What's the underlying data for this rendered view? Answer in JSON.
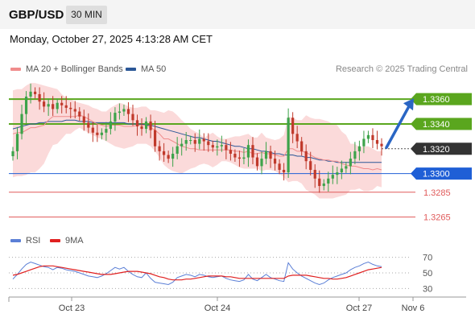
{
  "header": {
    "symbol": "GBP/USD",
    "timeframe": "30 MIN"
  },
  "datetime": "Monday, October 27, 2025 4:13:28 AM CET",
  "legend": {
    "ma20": {
      "label": "MA 20 + Bollinger Bands",
      "color": "#f08c8c"
    },
    "ma50": {
      "label": "MA 50",
      "color": "#2b5797"
    }
  },
  "credit": "Research © 2025 Trading Central",
  "rsi_legend": {
    "rsi": {
      "label": "RSI",
      "color": "#5b7fd6"
    },
    "ma": {
      "label": "9MA",
      "color": "#e02020"
    }
  },
  "colors": {
    "up": "#3da34a",
    "down": "#c0392b",
    "band": "#fbdada",
    "resistance": "#5aa61e",
    "pivot": "#1f5fd6",
    "support": "#e05a5a",
    "current": "#333333",
    "arrow": "#2a66c4"
  },
  "chart_data": [
    {
      "type": "candlestick",
      "ylim": [
        1.3255,
        1.3375
      ],
      "x_tick_labels": [
        "Oct 23",
        "Oct 24",
        "Oct 27",
        "Nov 6"
      ],
      "levels": [
        {
          "value": 1.336,
          "label": "1.3360",
          "kind": "resistance"
        },
        {
          "value": 1.334,
          "label": "1.3340",
          "kind": "resistance"
        },
        {
          "value": 1.332,
          "label": "1.3320",
          "kind": "current"
        },
        {
          "value": 1.33,
          "label": "1.3300",
          "kind": "pivot"
        },
        {
          "value": 1.3285,
          "label": "1.3285",
          "kind": "support"
        },
        {
          "value": 1.3265,
          "label": "1.3265",
          "kind": "support"
        }
      ],
      "closes": [
        1.3318,
        1.3332,
        1.3348,
        1.3362,
        1.3366,
        1.3364,
        1.3358,
        1.3354,
        1.3356,
        1.3352,
        1.3357,
        1.3355,
        1.3353,
        1.3352,
        1.335,
        1.3346,
        1.3341,
        1.3337,
        1.3333,
        1.3331,
        1.3333,
        1.3336,
        1.3342,
        1.3349,
        1.335,
        1.3352,
        1.3348,
        1.3343,
        1.3338,
        1.3336,
        1.3342,
        1.3335,
        1.3322,
        1.3318,
        1.3315,
        1.3312,
        1.3316,
        1.3322,
        1.3324,
        1.3327,
        1.3327,
        1.3324,
        1.3328,
        1.3326,
        1.3323,
        1.3321,
        1.3322,
        1.3323,
        1.3319,
        1.3316,
        1.3313,
        1.3312,
        1.3313,
        1.3323,
        1.3313,
        1.3306,
        1.3312,
        1.3318,
        1.3312,
        1.3308,
        1.3303,
        1.3301,
        1.3345,
        1.3332,
        1.3326,
        1.3318,
        1.331,
        1.3303,
        1.3296,
        1.329,
        1.3292,
        1.3296,
        1.3299,
        1.3301,
        1.3304,
        1.3306,
        1.3312,
        1.3318,
        1.3322,
        1.3328,
        1.3331,
        1.3327,
        1.3324,
        1.3322
      ],
      "bollinger_upper": [
        1.3367,
        1.3368,
        1.3368,
        1.3371,
        1.3373,
        1.3373,
        1.3372,
        1.3371,
        1.337,
        1.3369,
        1.3368,
        1.3364,
        1.3361,
        1.336,
        1.3358,
        1.3357,
        1.3356,
        1.3355,
        1.3353,
        1.3352,
        1.335,
        1.335,
        1.3353,
        1.3355,
        1.3357,
        1.3356,
        1.3354,
        1.3353,
        1.3353,
        1.3354,
        1.3354,
        1.3351,
        1.3351,
        1.335,
        1.3349,
        1.3351,
        1.335,
        1.3347,
        1.3343,
        1.334,
        1.3336,
        1.3334,
        1.3332,
        1.3329,
        1.3331,
        1.3333,
        1.333,
        1.3328,
        1.3328,
        1.3329,
        1.333,
        1.333,
        1.3331,
        1.3332,
        1.3329,
        1.3329,
        1.3333,
        1.3329,
        1.3328,
        1.3327,
        1.3328,
        1.3331,
        1.3346,
        1.3345,
        1.3343,
        1.3343,
        1.3347,
        1.3345,
        1.3344,
        1.3344,
        1.3343,
        1.3342,
        1.334,
        1.3339,
        1.3334,
        1.3331,
        1.3324,
        1.3324,
        1.3321,
        1.3322,
        1.3322,
        1.332,
        1.3318,
        1.3318
      ],
      "bollinger_lower": [
        1.3297,
        1.3298,
        1.3298,
        1.3299,
        1.3301,
        1.3301,
        1.3304,
        1.3308,
        1.3316,
        1.3323,
        1.3324,
        1.3328,
        1.3332,
        1.3332,
        1.3335,
        1.3337,
        1.3335,
        1.3333,
        1.3331,
        1.3329,
        1.3328,
        1.3326,
        1.3324,
        1.3322,
        1.3321,
        1.332,
        1.3321,
        1.3322,
        1.3324,
        1.3324,
        1.3324,
        1.3322,
        1.3318,
        1.3313,
        1.3307,
        1.3304,
        1.3302,
        1.3301,
        1.33,
        1.3302,
        1.3304,
        1.3305,
        1.3307,
        1.3308,
        1.3307,
        1.3305,
        1.3307,
        1.331,
        1.331,
        1.3309,
        1.3307,
        1.3305,
        1.3304,
        1.3304,
        1.3304,
        1.3304,
        1.3302,
        1.3303,
        1.3303,
        1.3302,
        1.33,
        1.3297,
        1.3293,
        1.3294,
        1.3294,
        1.3292,
        1.3287,
        1.3285,
        1.3283,
        1.328,
        1.328,
        1.328,
        1.328,
        1.3281,
        1.3282,
        1.3283,
        1.3287,
        1.3287,
        1.3288,
        1.3286,
        1.3286,
        1.3287,
        1.329,
        1.3289
      ],
      "ma20": [
        1.3332,
        1.3333,
        1.3333,
        1.3335,
        1.3337,
        1.3337,
        1.3338,
        1.3339,
        1.3343,
        1.3346,
        1.3346,
        1.3346,
        1.3346,
        1.3346,
        1.3346,
        1.3347,
        1.3346,
        1.3344,
        1.3342,
        1.334,
        1.3339,
        1.3338,
        1.3339,
        1.3339,
        1.3339,
        1.3338,
        1.3338,
        1.3338,
        1.3339,
        1.3339,
        1.3339,
        1.3337,
        1.3335,
        1.3332,
        1.3328,
        1.3328,
        1.3326,
        1.3324,
        1.3322,
        1.3321,
        1.332,
        1.332,
        1.3319,
        1.3319,
        1.3319,
        1.3319,
        1.3319,
        1.3319,
        1.3319,
        1.3319,
        1.3318,
        1.3318,
        1.3317,
        1.3318,
        1.3316,
        1.3316,
        1.3317,
        1.3316,
        1.3316,
        1.3315,
        1.3314,
        1.3314,
        1.332,
        1.332,
        1.3318,
        1.3318,
        1.3317,
        1.3315,
        1.3313,
        1.3312,
        1.3311,
        1.3311,
        1.331,
        1.331,
        1.3308,
        1.3307,
        1.3306,
        1.3306,
        1.3305,
        1.3304,
        1.3304,
        1.3303,
        1.3304,
        1.3303
      ],
      "ma50": [
        1.3336,
        1.3337,
        1.3338,
        1.3339,
        1.334,
        1.334,
        1.3341,
        1.3341,
        1.3342,
        1.3342,
        1.3342,
        1.3342,
        1.3343,
        1.3343,
        1.3343,
        1.3342,
        1.3342,
        1.3342,
        1.3341,
        1.3341,
        1.3341,
        1.3341,
        1.3341,
        1.3341,
        1.3341,
        1.3341,
        1.334,
        1.334,
        1.334,
        1.334,
        1.3339,
        1.3339,
        1.3338,
        1.3337,
        1.3336,
        1.3335,
        1.3334,
        1.3333,
        1.3332,
        1.3331,
        1.333,
        1.3329,
        1.3329,
        1.3328,
        1.3327,
        1.3326,
        1.3326,
        1.3325,
        1.3324,
        1.3323,
        1.3322,
        1.3322,
        1.3321,
        1.332,
        1.332,
        1.3319,
        1.3318,
        1.3318,
        1.3317,
        1.3316,
        1.3316,
        1.3315,
        1.3315,
        1.3315,
        1.3314,
        1.3314,
        1.3313,
        1.3313,
        1.3312,
        1.3311,
        1.3311,
        1.331,
        1.331,
        1.3309,
        1.3309,
        1.3309,
        1.3309,
        1.3309,
        1.3309,
        1.3309,
        1.3309,
        1.3309,
        1.3309,
        1.3309
      ]
    },
    {
      "type": "line",
      "name": "RSI",
      "ylim": [
        20,
        80
      ],
      "y_ticks": [
        70,
        50,
        30
      ],
      "rsi": [
        42,
        48,
        55,
        61,
        64,
        62,
        60,
        58,
        57,
        54,
        57,
        56,
        54,
        53,
        52,
        50,
        48,
        46,
        45,
        44,
        46,
        49,
        53,
        57,
        55,
        57,
        52,
        48,
        45,
        44,
        50,
        43,
        38,
        37,
        36,
        35,
        38,
        44,
        46,
        48,
        47,
        45,
        48,
        47,
        45,
        44,
        45,
        46,
        43,
        41,
        40,
        39,
        41,
        48,
        42,
        40,
        44,
        48,
        44,
        42,
        40,
        39,
        63,
        55,
        50,
        46,
        43,
        40,
        37,
        35,
        37,
        41,
        44,
        46,
        48,
        50,
        54,
        57,
        59,
        62,
        64,
        61,
        59,
        58
      ],
      "rsi_ma": [
        47,
        48,
        50,
        52,
        54,
        56,
        58,
        59,
        59,
        59,
        58,
        57,
        56,
        55,
        54,
        53,
        52,
        51,
        50,
        49,
        48,
        48,
        48,
        49,
        50,
        51,
        52,
        52,
        52,
        51,
        50,
        49,
        47,
        45,
        44,
        42,
        41,
        41,
        41,
        42,
        42,
        43,
        44,
        45,
        46,
        46,
        46,
        46,
        45,
        45,
        44,
        43,
        43,
        43,
        43,
        43,
        43,
        43,
        43,
        43,
        43,
        43,
        46,
        47,
        47,
        47,
        47,
        46,
        45,
        44,
        43,
        43,
        42,
        42,
        43,
        44,
        46,
        48,
        50,
        52,
        54,
        55,
        56,
        57
      ]
    }
  ]
}
